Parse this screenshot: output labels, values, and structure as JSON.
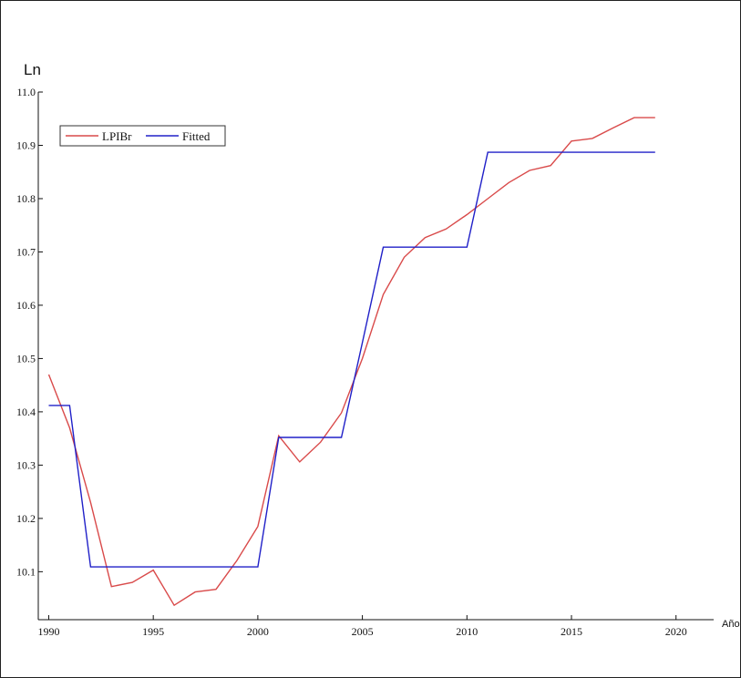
{
  "chart_data": {
    "type": "line",
    "title": "",
    "ylabel": "Ln",
    "xlabel": "Año",
    "xlim": [
      1989.5,
      2021.8
    ],
    "ylim": [
      10.01,
      11.0
    ],
    "x_ticks": [
      1990,
      1995,
      2000,
      2005,
      2010,
      2015,
      2020
    ],
    "y_ticks": [
      10.1,
      10.2,
      10.3,
      10.4,
      10.5,
      10.6,
      10.7,
      10.8,
      10.9,
      11.0
    ],
    "legend_position": "top-left",
    "grid": false,
    "series": [
      {
        "name": "LPIBr",
        "color": "#d94a4a",
        "style": "line",
        "points": [
          [
            1990,
            10.47
          ],
          [
            1991,
            10.37
          ],
          [
            1992,
            10.23
          ],
          [
            1993,
            10.072
          ],
          [
            1994,
            10.08
          ],
          [
            1995,
            10.103
          ],
          [
            1996,
            10.037
          ],
          [
            1997,
            10.062
          ],
          [
            1998,
            10.067
          ],
          [
            1999,
            10.121
          ],
          [
            2000,
            10.185
          ],
          [
            2001,
            10.355
          ],
          [
            2002,
            10.306
          ],
          [
            2003,
            10.343
          ],
          [
            2004,
            10.398
          ],
          [
            2005,
            10.5
          ],
          [
            2006,
            10.62
          ],
          [
            2007,
            10.69
          ],
          [
            2008,
            10.727
          ],
          [
            2009,
            10.743
          ],
          [
            2010,
            10.77
          ],
          [
            2011,
            10.8
          ],
          [
            2012,
            10.83
          ],
          [
            2013,
            10.853
          ],
          [
            2014,
            10.862
          ],
          [
            2015,
            10.908
          ],
          [
            2016,
            10.913
          ],
          [
            2017,
            10.933
          ],
          [
            2018,
            10.952
          ],
          [
            2019,
            10.952
          ]
        ]
      },
      {
        "name": "Fitted",
        "color": "#2020c8",
        "style": "line",
        "points": [
          [
            1990,
            10.412
          ],
          [
            1991,
            10.412
          ],
          [
            1992,
            10.109
          ],
          [
            1993,
            10.109
          ],
          [
            1994,
            10.109
          ],
          [
            1995,
            10.109
          ],
          [
            1996,
            10.109
          ],
          [
            1997,
            10.109
          ],
          [
            1998,
            10.109
          ],
          [
            1999,
            10.109
          ],
          [
            2000,
            10.109
          ],
          [
            2001,
            10.352
          ],
          [
            2002,
            10.352
          ],
          [
            2003,
            10.352
          ],
          [
            2004,
            10.352
          ],
          [
            2005,
            10.53
          ],
          [
            2006,
            10.709
          ],
          [
            2007,
            10.709
          ],
          [
            2008,
            10.709
          ],
          [
            2009,
            10.709
          ],
          [
            2010,
            10.709
          ],
          [
            2011,
            10.887
          ],
          [
            2012,
            10.887
          ],
          [
            2013,
            10.887
          ],
          [
            2014,
            10.887
          ],
          [
            2015,
            10.887
          ],
          [
            2016,
            10.887
          ],
          [
            2017,
            10.887
          ],
          [
            2018,
            10.887
          ],
          [
            2019,
            10.887
          ]
        ]
      }
    ]
  }
}
